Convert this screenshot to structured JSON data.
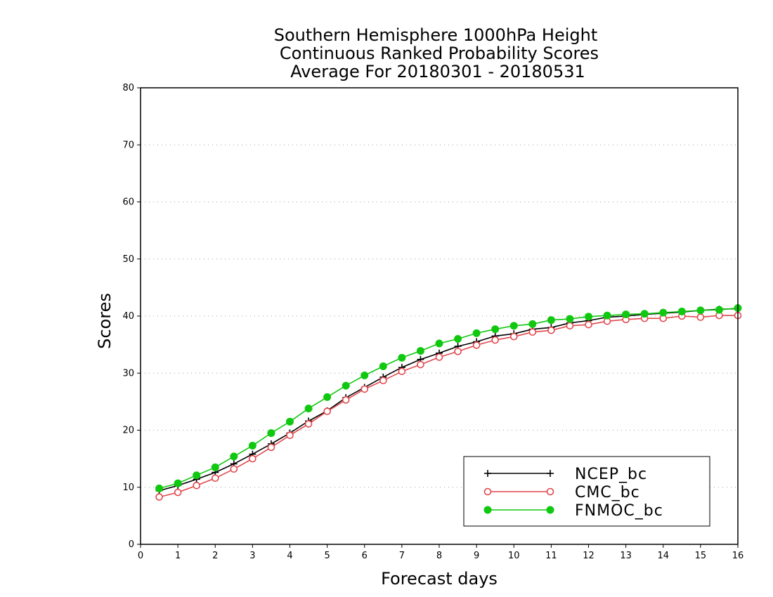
{
  "chart_data": {
    "type": "line",
    "title_lines": [
      "Southern Hemisphere 1000hPa Height",
      "Continuous Ranked Probability Scores",
      "Average For 20180301 - 20180531"
    ],
    "xlabel": "Forecast days",
    "ylabel": "Scores",
    "xlim": [
      0,
      16
    ],
    "ylim": [
      0,
      80
    ],
    "x_ticks": [
      0,
      1,
      2,
      3,
      4,
      5,
      6,
      7,
      8,
      9,
      10,
      11,
      12,
      13,
      14,
      15,
      16
    ],
    "y_ticks": [
      0,
      10,
      20,
      30,
      40,
      50,
      60,
      70,
      80
    ],
    "grid": "horizontal-dotted",
    "legend_position": "bottom-right",
    "x": [
      0.5,
      1,
      1.5,
      2,
      2.5,
      3,
      3.5,
      4,
      4.5,
      5,
      5.5,
      6,
      6.5,
      7,
      7.5,
      8,
      8.5,
      9,
      9.5,
      10,
      10.5,
      11,
      11.5,
      12,
      12.5,
      13,
      13.5,
      14,
      14.5,
      15,
      15.5,
      16
    ],
    "series": [
      {
        "name": "NCEP_bc",
        "color": "#000000",
        "marker": "plus",
        "values": [
          9.4,
          10.3,
          11.4,
          12.6,
          14.1,
          15.8,
          17.6,
          19.5,
          21.6,
          23.4,
          25.7,
          27.5,
          29.3,
          31.0,
          32.4,
          33.5,
          34.7,
          35.5,
          36.5,
          36.9,
          37.7,
          38.0,
          38.8,
          39.2,
          39.8,
          40.0,
          40.3,
          40.5,
          40.7,
          41.0,
          41.2,
          41.3
        ]
      },
      {
        "name": "CMC_bc",
        "color": "#e0474c",
        "marker": "open-circle",
        "values": [
          8.3,
          9.1,
          10.3,
          11.6,
          13.2,
          15.0,
          17.0,
          19.1,
          21.1,
          23.3,
          25.3,
          27.2,
          28.7,
          30.3,
          31.5,
          32.8,
          33.8,
          34.9,
          35.8,
          36.4,
          37.2,
          37.5,
          38.3,
          38.5,
          39.1,
          39.4,
          39.6,
          39.6,
          40.0,
          39.8,
          40.1,
          40.1
        ]
      },
      {
        "name": "FNMOC_bc",
        "color": "#10c810",
        "marker": "filled-circle",
        "values": [
          9.8,
          10.7,
          12.1,
          13.5,
          15.4,
          17.3,
          19.5,
          21.5,
          23.8,
          25.8,
          27.8,
          29.6,
          31.2,
          32.7,
          33.9,
          35.2,
          36.0,
          37.0,
          37.7,
          38.3,
          38.6,
          39.3,
          39.5,
          39.9,
          40.1,
          40.3,
          40.4,
          40.6,
          40.8,
          41.0,
          41.1,
          41.4
        ]
      }
    ]
  }
}
